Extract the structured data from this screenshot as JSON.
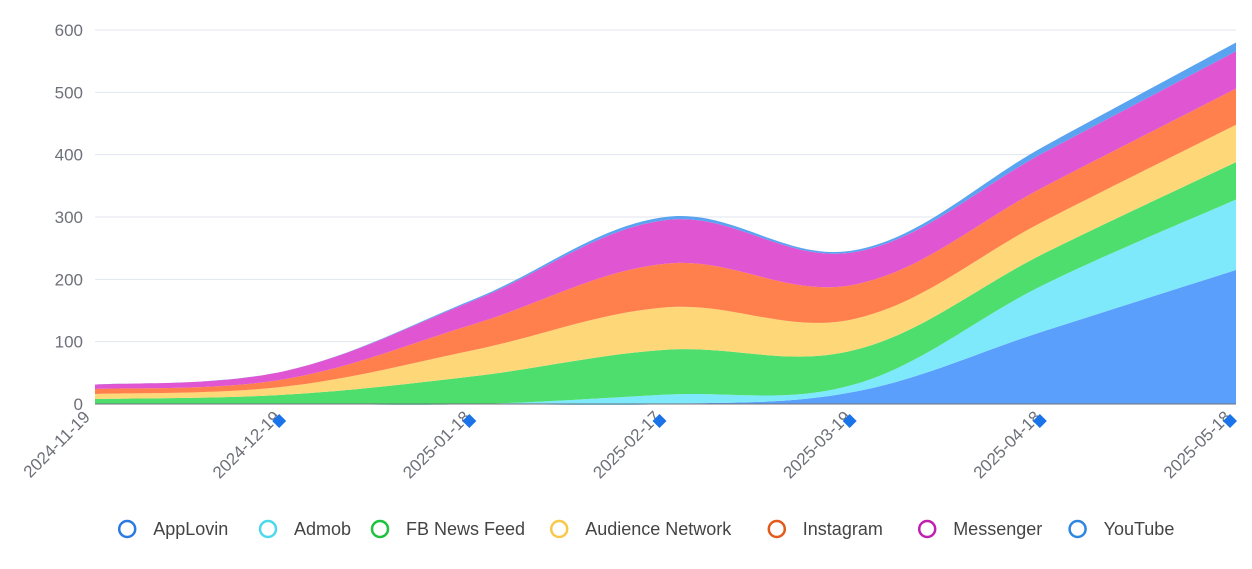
{
  "chart_data": {
    "type": "area",
    "stacked": true,
    "title": "",
    "xlabel": "",
    "ylabel": "",
    "ylim": [
      0,
      600
    ],
    "yticks": [
      0,
      100,
      200,
      300,
      400,
      500,
      600
    ],
    "categories": [
      "2024-11-19",
      "2024-12-19",
      "2025-01-18",
      "2025-02-17",
      "2025-03-19",
      "2025-04-18",
      "2025-05-18"
    ],
    "marked_ticks": [
      "2024-12-19",
      "2025-01-18",
      "2025-02-17",
      "2025-03-19",
      "2025-04-18",
      "2025-05-18"
    ],
    "series": [
      {
        "name": "AppLovin",
        "color": "#5b9ffc",
        "legend_color": "#2a7ae2",
        "values": [
          0,
          0,
          0,
          0,
          20,
          118,
          215
        ]
      },
      {
        "name": "Admob",
        "color": "#7ee9fa",
        "legend_color": "#4ed8ec",
        "values": [
          0,
          0,
          0,
          15,
          12,
          75,
          113
        ]
      },
      {
        "name": "FB News Feed",
        "color": "#4ede6e",
        "legend_color": "#1fc23f",
        "values": [
          8,
          15,
          45,
          72,
          55,
          50,
          60
        ]
      },
      {
        "name": "Audience Network",
        "color": "#fed778",
        "legend_color": "#f7c84a",
        "values": [
          8,
          13,
          42,
          68,
          50,
          52,
          60
        ]
      },
      {
        "name": "Instagram",
        "color": "#ff7f4d",
        "legend_color": "#e25a1c",
        "values": [
          8,
          12,
          42,
          70,
          55,
          55,
          58
        ]
      },
      {
        "name": "Messenger",
        "color": "#e055d2",
        "legend_color": "#c01fb0",
        "values": [
          7,
          13,
          38,
          70,
          52,
          55,
          60
        ]
      },
      {
        "name": "YouTube",
        "color": "#5aa3f0",
        "legend_color": "#2f86e0",
        "values": [
          0,
          0,
          2,
          5,
          3,
          10,
          14
        ]
      }
    ]
  }
}
